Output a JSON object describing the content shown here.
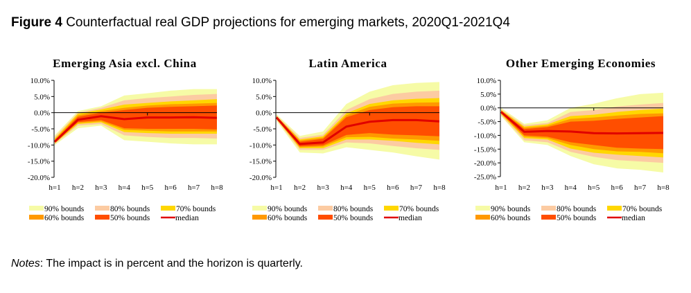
{
  "figure": {
    "label": "Figure 4",
    "title": "Counterfactual real GDP projections for emerging markets, 2020Q1-2021Q4"
  },
  "notes": {
    "label": "Notes",
    "text": ": The impact is in percent and the horizon is quarterly."
  },
  "colors": {
    "b90": "#F6FBA6",
    "b80": "#FCCBA2",
    "b70": "#FFD700",
    "b60": "#FF9900",
    "b50": "#FF4E00",
    "median": "#E00000"
  },
  "legend": [
    {
      "key": "b90",
      "label": "90% bounds",
      "type": "area"
    },
    {
      "key": "b80",
      "label": "80% bounds",
      "type": "area"
    },
    {
      "key": "b70",
      "label": "70% bounds",
      "type": "area"
    },
    {
      "key": "b60",
      "label": "60% bounds",
      "type": "area"
    },
    {
      "key": "b50",
      "label": "50% bounds",
      "type": "area"
    },
    {
      "key": "median",
      "label": "median",
      "type": "line"
    }
  ],
  "chart_data": [
    {
      "type": "area",
      "title": "Emerging Asia excl. China",
      "categories": [
        "h=1",
        "h=2",
        "h=3",
        "h=4",
        "h=5",
        "h=6",
        "h=7",
        "h=8"
      ],
      "ylim": [
        -20,
        10
      ],
      "yticks": [
        "10.0%",
        "5.0%",
        "0.0%",
        "-5.0%",
        "-10.0%",
        "-15.0%",
        "-20.0%"
      ],
      "grid": false,
      "legend_position": "bottom",
      "bands": {
        "b90": {
          "upper": [
            -7,
            0.5,
            2,
            5.3,
            6,
            6.8,
            7.3,
            7.3
          ],
          "lower": [
            -10,
            -4.8,
            -4,
            -8.5,
            -9,
            -9.5,
            -9.8,
            -9.8
          ]
        },
        "b80": {
          "upper": [
            -7.5,
            0,
            1.5,
            3.8,
            4.5,
            5,
            5.5,
            5.8
          ],
          "lower": [
            -9.7,
            -4,
            -3.5,
            -7,
            -7.5,
            -7.8,
            -7.8,
            -8
          ]
        },
        "b70": {
          "upper": [
            -8,
            -0.3,
            1,
            2.5,
            3,
            3.5,
            3.8,
            4.2
          ],
          "lower": [
            -9.5,
            -3.5,
            -3,
            -6,
            -6.3,
            -6.5,
            -6.5,
            -6.5
          ]
        },
        "b60": {
          "upper": [
            -8.3,
            -0.8,
            0.5,
            1.5,
            2.2,
            2.6,
            2.8,
            3
          ],
          "lower": [
            -9.3,
            -3.2,
            -2.7,
            -5.3,
            -5.6,
            -5.8,
            -5.8,
            -5.8
          ]
        },
        "b50": {
          "upper": [
            -8.5,
            -1.3,
            0,
            0.8,
            1.5,
            1.8,
            2,
            2.2
          ],
          "lower": [
            -9.2,
            -2.9,
            -2.3,
            -4.8,
            -5,
            -5,
            -5,
            -5.2
          ]
        }
      },
      "median": [
        -9,
        -2.2,
        -1.1,
        -2,
        -1.5,
        -1.5,
        -1.4,
        -1.6
      ]
    },
    {
      "type": "area",
      "title": "Latin America",
      "categories": [
        "h=1",
        "h=2",
        "h=3",
        "h=4",
        "h=5",
        "h=6",
        "h=7",
        "h=8"
      ],
      "ylim": [
        -20,
        10
      ],
      "yticks": [
        "10.0%",
        "5.0%",
        "0.0%",
        "-5.0%",
        "-10.0%",
        "-15.0%",
        "-20.0%"
      ],
      "grid": false,
      "legend_position": "bottom",
      "bands": {
        "b90": {
          "upper": [
            -0.5,
            -7.2,
            -5.8,
            2.7,
            6.5,
            8.5,
            9.2,
            9.5
          ],
          "lower": [
            -2.5,
            -12.3,
            -12.6,
            -10.7,
            -11.5,
            -12.3,
            -13.5,
            -14.5
          ]
        },
        "b80": {
          "upper": [
            -0.8,
            -7.8,
            -6.8,
            0.8,
            4.2,
            5.8,
            6.5,
            6.8
          ],
          "lower": [
            -2.2,
            -11.5,
            -11.5,
            -9.2,
            -9.5,
            -10.3,
            -11,
            -11.5
          ]
        },
        "b70": {
          "upper": [
            -1,
            -8.3,
            -7.3,
            -0.2,
            2.7,
            3.8,
            4.3,
            4.5
          ],
          "lower": [
            -2,
            -11,
            -11,
            -8.3,
            -8.3,
            -8.7,
            -9.3,
            -9.8
          ]
        },
        "b60": {
          "upper": [
            -1.1,
            -8.6,
            -7.7,
            -0.8,
            1.8,
            2.8,
            3.1,
            3.2
          ],
          "lower": [
            -1.9,
            -10.7,
            -10.5,
            -7.6,
            -7.5,
            -8,
            -8.3,
            -8.7
          ]
        },
        "b50": {
          "upper": [
            -1.2,
            -9,
            -8.1,
            -1.4,
            0.8,
            1.7,
            2,
            2
          ],
          "lower": [
            -1.8,
            -10.4,
            -10.1,
            -6.9,
            -6.3,
            -6.8,
            -7,
            -7.3
          ]
        }
      },
      "median": [
        -1.5,
        -9.7,
        -9.2,
        -4.3,
        -2.8,
        -2.3,
        -2.3,
        -2.7
      ]
    },
    {
      "type": "area",
      "title": "Other Emerging Economies",
      "categories": [
        "h=1",
        "h=2",
        "h=3",
        "h=4",
        "h=5",
        "h=6",
        "h=7",
        "h=8"
      ],
      "ylim": [
        -25,
        10
      ],
      "yticks": [
        "10.0%",
        "5.0%",
        "0.0%",
        "-5.0%",
        "-10.0%",
        "-15.0%",
        "-20.0%",
        "-25.0%"
      ],
      "grid": false,
      "legend_position": "bottom",
      "bands": {
        "b90": {
          "upper": [
            0,
            -5.8,
            -4.5,
            0,
            1.5,
            3.5,
            5,
            5.5
          ],
          "lower": [
            -3,
            -12.5,
            -13.5,
            -17.5,
            -20.5,
            -22,
            -22.5,
            -23.5
          ]
        },
        "b80": {
          "upper": [
            -0.5,
            -6.3,
            -5.5,
            -1.5,
            -0.8,
            0.5,
            1.2,
            1.8
          ],
          "lower": [
            -2.7,
            -11.8,
            -12.5,
            -16,
            -17.8,
            -19,
            -19.5,
            -20
          ]
        },
        "b70": {
          "upper": [
            -0.8,
            -6.8,
            -6,
            -3,
            -2.5,
            -1.5,
            -0.8,
            -0.3
          ],
          "lower": [
            -2.3,
            -11,
            -11.5,
            -14.8,
            -16.3,
            -17,
            -17.5,
            -18
          ]
        },
        "b60": {
          "upper": [
            -1,
            -7.2,
            -6.5,
            -4,
            -3.5,
            -2.8,
            -2.2,
            -2
          ],
          "lower": [
            -2.1,
            -10.5,
            -11,
            -13.5,
            -15,
            -15.8,
            -16,
            -16.5
          ]
        },
        "b50": {
          "upper": [
            -1.2,
            -7.7,
            -7,
            -5,
            -4.7,
            -4,
            -3.5,
            -3
          ],
          "lower": [
            -1.9,
            -10,
            -10.5,
            -12.5,
            -13.5,
            -14.5,
            -14.8,
            -15
          ]
        }
      },
      "median": [
        -1.5,
        -8.7,
        -8.4,
        -8.6,
        -9.2,
        -9.3,
        -9.2,
        -9.1
      ]
    }
  ]
}
